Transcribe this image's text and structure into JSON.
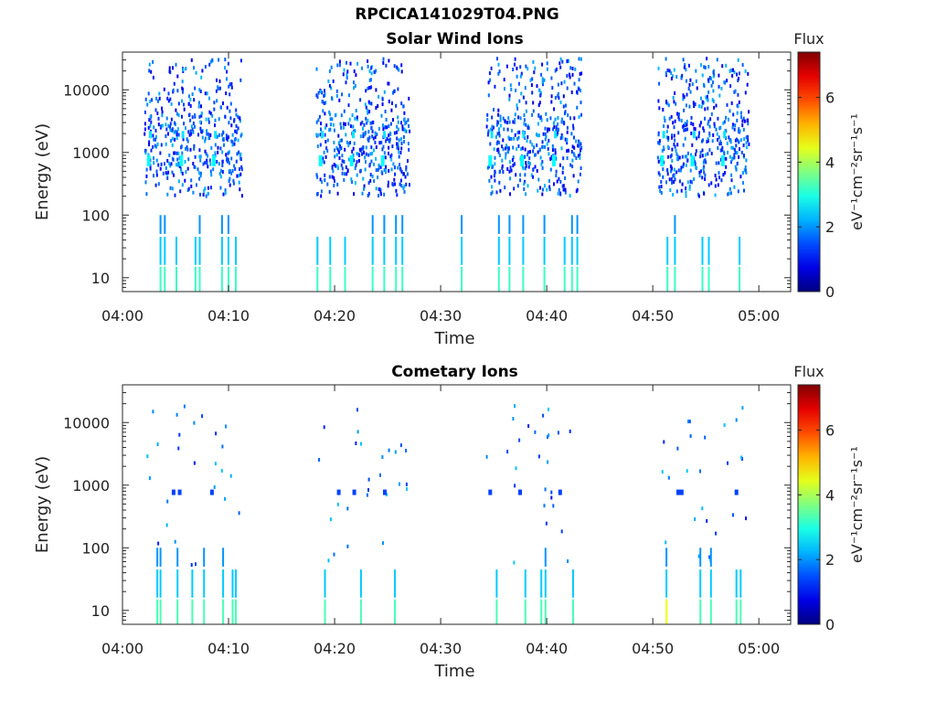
{
  "page": {
    "file_title": "RPCICA141029T04.PNG"
  },
  "chart_data": [
    {
      "type": "heatmap",
      "title": "Solar Wind Ions",
      "xlabel": "Time",
      "ylabel": "Energy (eV)",
      "y_scale": "log",
      "ylim": [
        6,
        40000
      ],
      "xlim_minutes": [
        0,
        63
      ],
      "x_tick_labels": [
        "04:00",
        "04:10",
        "04:20",
        "04:30",
        "04:40",
        "04:50",
        "05:00"
      ],
      "x_tick_minutes": [
        0,
        10,
        20,
        30,
        40,
        50,
        60
      ],
      "y_tick_labels": [
        "10",
        "100",
        "1000",
        "10000"
      ],
      "y_tick_values": [
        10,
        100,
        1000,
        10000
      ],
      "colorbar": {
        "title": "Flux",
        "label": "eV⁻¹cm⁻²sr⁻¹s⁻¹",
        "range": [
          0,
          7.4
        ],
        "ticks": [
          "0",
          "2",
          "4",
          "6"
        ],
        "tick_values": [
          0,
          2,
          4,
          6
        ],
        "colormap": "jet"
      },
      "bursts": [
        {
          "start_min": 2.0,
          "end_min": 11.2
        },
        {
          "start_min": 18.2,
          "end_min": 27.0
        },
        {
          "start_min": 34.2,
          "end_min": 43.2
        },
        {
          "start_min": 50.4,
          "end_min": 59.0
        }
      ],
      "low_energy_lines_min": [
        3.5,
        3.9,
        5.0,
        6.8,
        7.2,
        9.3,
        9.9,
        10.6,
        18.3,
        19.5,
        20.9,
        23.5,
        24.6,
        25.7,
        26.3,
        31.9,
        35.4,
        36.4,
        37.7,
        39.7,
        41.6,
        42.3,
        42.8,
        51.3,
        52.0,
        54.6,
        55.2,
        58.1
      ],
      "grid": false
    },
    {
      "type": "heatmap",
      "title": "Cometary Ions",
      "xlabel": "Time",
      "ylabel": "Energy (eV)",
      "y_scale": "log",
      "ylim": [
        6,
        40000
      ],
      "xlim_minutes": [
        0,
        63
      ],
      "x_tick_labels": [
        "04:00",
        "04:10",
        "04:20",
        "04:30",
        "04:40",
        "04:50",
        "05:00"
      ],
      "x_tick_minutes": [
        0,
        10,
        20,
        30,
        40,
        50,
        60
      ],
      "y_tick_labels": [
        "10",
        "100",
        "1000",
        "10000"
      ],
      "y_tick_values": [
        10,
        100,
        1000,
        10000
      ],
      "colorbar": {
        "title": "Flux",
        "label": "eV⁻¹cm⁻²sr⁻¹s⁻¹",
        "range": [
          0,
          7.4
        ],
        "ticks": [
          "0",
          "2",
          "4",
          "6"
        ],
        "tick_values": [
          0,
          2,
          4,
          6
        ],
        "colormap": "jet"
      },
      "bursts": [
        {
          "start_min": 2.0,
          "end_min": 11.2
        },
        {
          "start_min": 18.2,
          "end_min": 27.0
        },
        {
          "start_min": 34.2,
          "end_min": 43.2
        },
        {
          "start_min": 50.4,
          "end_min": 59.0
        }
      ],
      "low_energy_lines_min": [
        3.2,
        3.5,
        5.1,
        6.5,
        7.6,
        9.4,
        10.3,
        10.6,
        19.0,
        22.4,
        25.6,
        35.2,
        37.9,
        39.4,
        39.8,
        42.4,
        51.2,
        54.4,
        55.4,
        57.8,
        58.2
      ],
      "grid": false
    }
  ]
}
